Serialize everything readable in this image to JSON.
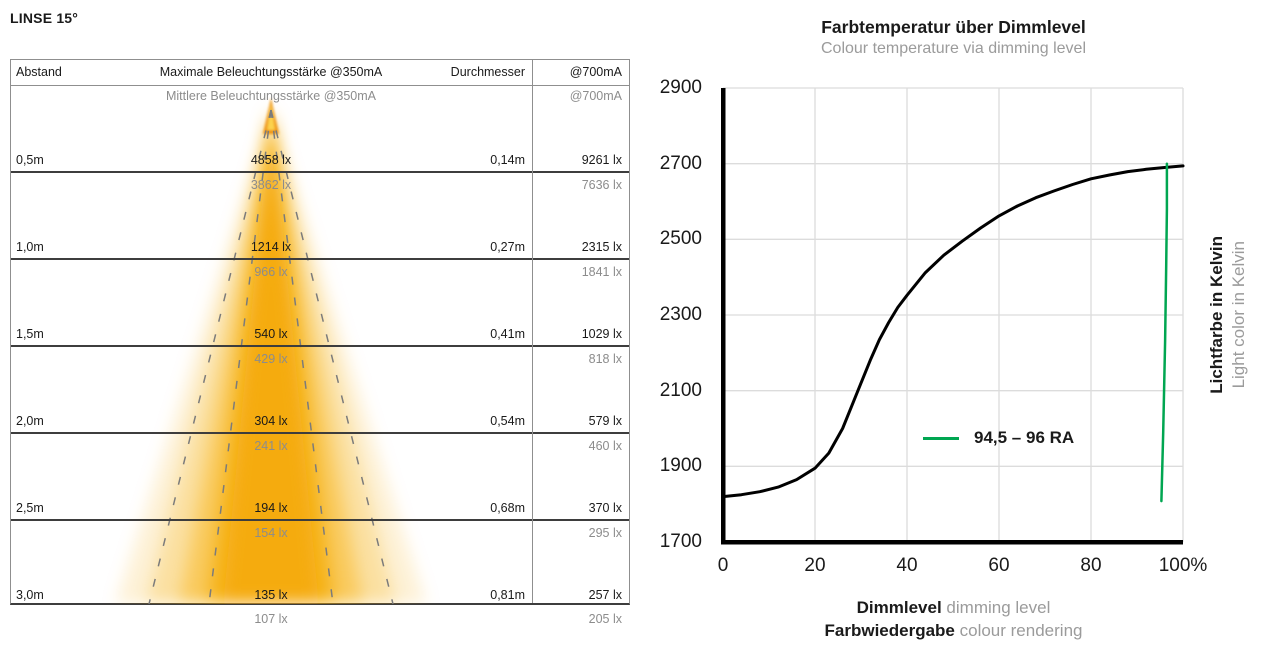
{
  "title": "LINSE 15°",
  "table": {
    "headers": {
      "distance": "Abstand",
      "max": "Maximale Beleuchtungsstärke @350mA",
      "diameter": "Durchmesser",
      "at700": "@700mA",
      "mean": "Mittlere Beleuchtungsstärke @350mA",
      "mean_at700": "@700mA"
    },
    "rows": [
      {
        "distance": "0,5m",
        "max": "4858 lx",
        "diameter": "0,14m",
        "at700": "9261 lx",
        "mean": "3862 lx",
        "mean_at700": "7636 lx"
      },
      {
        "distance": "1,0m",
        "max": "1214 lx",
        "diameter": "0,27m",
        "at700": "2315 lx",
        "mean": "966 lx",
        "mean_at700": "1841 lx"
      },
      {
        "distance": "1,5m",
        "max": "540 lx",
        "diameter": "0,41m",
        "at700": "1029 lx",
        "mean": "429 lx",
        "mean_at700": "818 lx"
      },
      {
        "distance": "2,0m",
        "max": "304 lx",
        "diameter": "0,54m",
        "at700": "579 lx",
        "mean": "241 lx",
        "mean_at700": "460 lx"
      },
      {
        "distance": "2,5m",
        "max": "194 lx",
        "diameter": "0,68m",
        "at700": "370 lx",
        "mean": "154 lx",
        "mean_at700": "295 lx"
      },
      {
        "distance": "3,0m",
        "max": "135 lx",
        "diameter": "0,81m",
        "at700": "257 lx",
        "mean": "107 lx",
        "mean_at700": "205 lx"
      }
    ],
    "beam_color": "#F5AB07",
    "dash_color": "#7b7b7b"
  },
  "chart": {
    "title": "Farbtemperatur über Dimmlevel",
    "subtitle": "Colour temperature via dimming level",
    "y_ticks": [
      "2900",
      "2700",
      "2500",
      "2300",
      "2100",
      "1900",
      "1700"
    ],
    "x_ticks": [
      "0",
      "20",
      "40",
      "60",
      "80",
      "100%"
    ],
    "y_axis_label_de": "Lichtfarbe in Kelvin",
    "y_axis_label_en": "Light color in Kelvin",
    "x_axis_label_de": "Dimmlevel",
    "x_axis_label_en": "dimming level",
    "x_axis_label2_de": "Farbwiedergabe",
    "x_axis_label2_en": "colour rendering",
    "legend": "94,5 – 96 RA",
    "line_color": "#000000",
    "ra_color": "#00A651",
    "grid_color": "#dcdcdc"
  },
  "chart_data": {
    "type": "line",
    "title": "Farbtemperatur über Dimmlevel",
    "subtitle": "Colour temperature via dimming level",
    "xlabel": "Dimmlevel (dimming level) / Farbwiedergabe (colour rendering)",
    "ylabel": "Lichtfarbe in Kelvin (Light color in Kelvin)",
    "xlim": [
      0,
      100
    ],
    "ylim": [
      1700,
      2900
    ],
    "x_unit": "%",
    "x_tick_values": [
      0,
      20,
      40,
      60,
      80,
      100
    ],
    "y_tick_values": [
      2900,
      2700,
      2500,
      2300,
      2100,
      1900,
      1700
    ],
    "grid": true,
    "legend_position": "center-right",
    "series": [
      {
        "name": "Farbtemperatur über Dimmlevel",
        "color": "#000000",
        "width": 3,
        "points": [
          [
            0,
            1820
          ],
          [
            4,
            1825
          ],
          [
            8,
            1833
          ],
          [
            12,
            1845
          ],
          [
            16,
            1865
          ],
          [
            20,
            1895
          ],
          [
            23,
            1935
          ],
          [
            26,
            2000
          ],
          [
            28,
            2060
          ],
          [
            30,
            2120
          ],
          [
            32,
            2180
          ],
          [
            34,
            2235
          ],
          [
            36,
            2280
          ],
          [
            38,
            2320
          ],
          [
            40,
            2352
          ],
          [
            44,
            2412
          ],
          [
            48,
            2458
          ],
          [
            52,
            2495
          ],
          [
            56,
            2530
          ],
          [
            60,
            2562
          ],
          [
            64,
            2588
          ],
          [
            68,
            2610
          ],
          [
            72,
            2628
          ],
          [
            76,
            2645
          ],
          [
            80,
            2660
          ],
          [
            84,
            2670
          ],
          [
            88,
            2679
          ],
          [
            92,
            2685
          ],
          [
            96,
            2690
          ],
          [
            100,
            2694
          ]
        ]
      },
      {
        "name": "94,5 – 96 RA",
        "color": "#00A651",
        "width": 2.5,
        "note": "colour-rendering curve (RA 94,5–96), appears as near-vertical green line at ~96% dimlevel",
        "points": [
          [
            95.3,
            1808
          ],
          [
            95.7,
            1990
          ],
          [
            96.1,
            2230
          ],
          [
            96.35,
            2430
          ],
          [
            96.5,
            2580
          ],
          [
            96.5,
            2700
          ]
        ]
      }
    ]
  }
}
